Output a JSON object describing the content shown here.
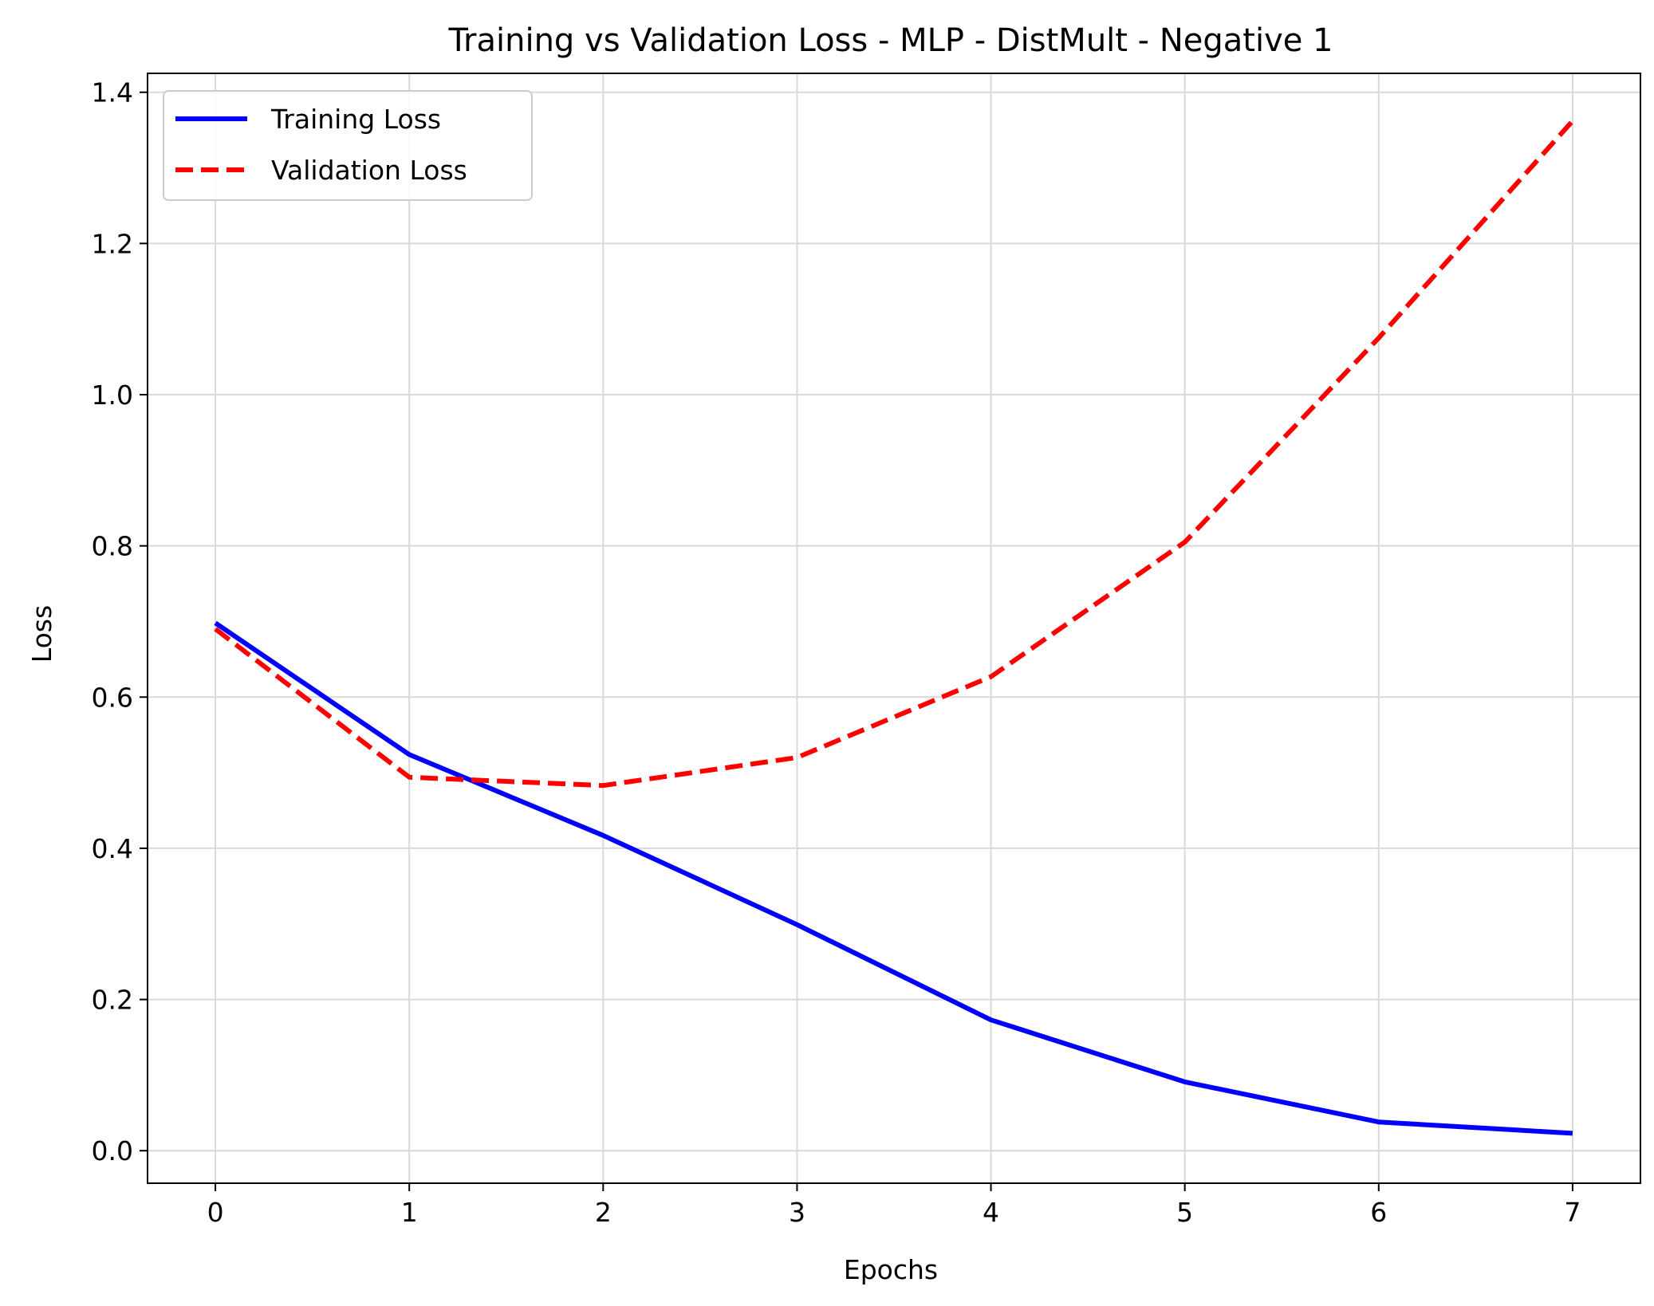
{
  "chart_data": {
    "type": "line",
    "title": "Training vs Validation Loss - MLP - DistMult - Negative 1",
    "xlabel": "Epochs",
    "ylabel": "Loss",
    "x": [
      0,
      1,
      2,
      3,
      4,
      5,
      6,
      7
    ],
    "xlim": [
      -0.35,
      7.35
    ],
    "ylim": [
      -0.043,
      1.425
    ],
    "xticks": [
      0,
      1,
      2,
      3,
      4,
      5,
      6,
      7
    ],
    "xtick_labels": [
      "0",
      "1",
      "2",
      "3",
      "4",
      "5",
      "6",
      "7"
    ],
    "yticks": [
      0.0,
      0.2,
      0.4,
      0.6,
      0.8,
      1.0,
      1.2,
      1.4
    ],
    "ytick_labels": [
      "0.0",
      "0.2",
      "0.4",
      "0.6",
      "0.8",
      "1.0",
      "1.2",
      "1.4"
    ],
    "grid": true,
    "legend_position": "top-left",
    "series": [
      {
        "name": "Training Loss",
        "values": [
          0.698,
          0.524,
          0.417,
          0.299,
          0.173,
          0.091,
          0.038,
          0.023
        ],
        "color": "#0000ff",
        "line_style": "solid"
      },
      {
        "name": "Validation Loss",
        "values": [
          0.69,
          0.494,
          0.483,
          0.52,
          0.627,
          0.805,
          1.075,
          1.362
        ],
        "color": "#ff0000",
        "line_style": "dashed"
      }
    ]
  }
}
